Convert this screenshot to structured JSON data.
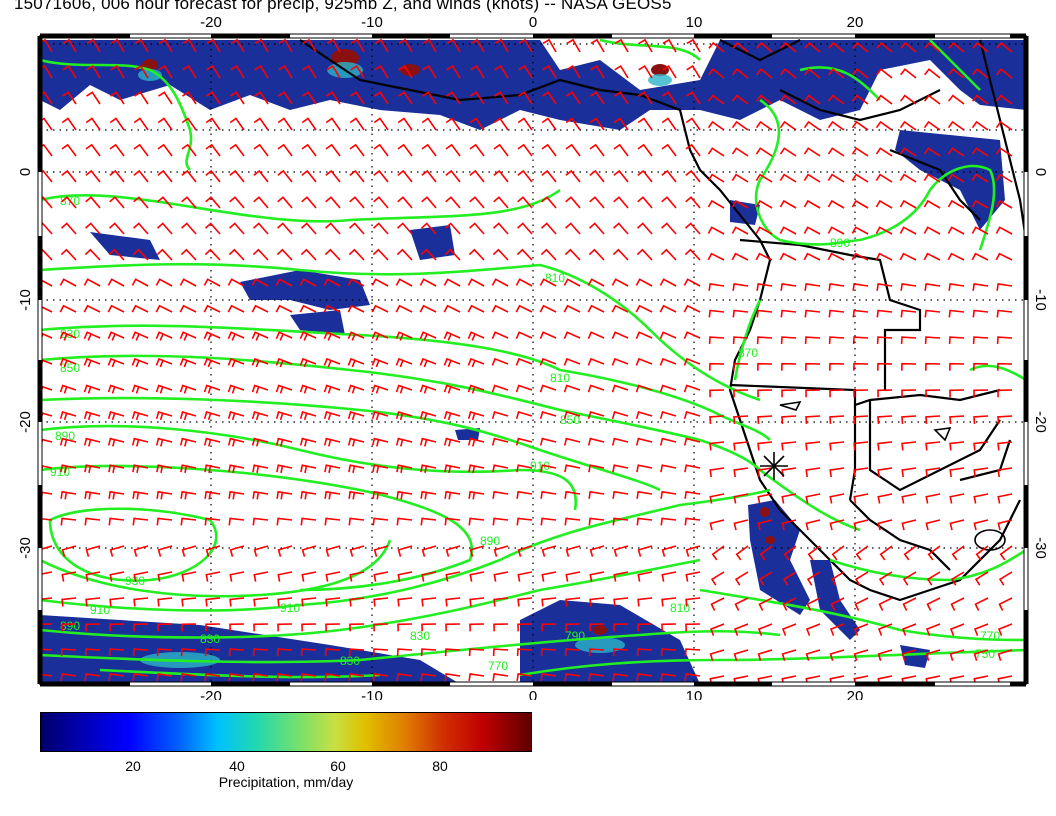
{
  "title": "15071606, 006 hour forecast for precip, 925mb Z, and winds (knots) -- NASA GEOS5",
  "map": {
    "lon_ticks": [
      "-20",
      "-10",
      "0",
      "10",
      "20"
    ],
    "lat_ticks": [
      "0",
      "-10",
      "-20",
      "-30"
    ],
    "contour_labels": [
      "790",
      "810",
      "830",
      "850",
      "870",
      "890",
      "910",
      "930",
      "770",
      "750",
      "790",
      "810",
      "830",
      "850",
      "870",
      "890",
      "910",
      "790",
      "770",
      "810"
    ],
    "colors": {
      "precip_high": "#8b0000",
      "precip_low": "#0a1a8c",
      "contours": "#22ee22",
      "wind_barbs": "#ff0000",
      "coast": "#000000"
    },
    "marker": "city-star"
  },
  "colorbar": {
    "ticks": [
      "20",
      "40",
      "60",
      "80"
    ],
    "label": "Precipitation, mm/day"
  }
}
